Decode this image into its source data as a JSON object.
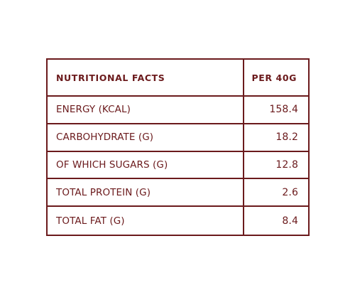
{
  "table": {
    "header": {
      "label": "NUTRITIONAL FACTS",
      "value": "PER 40G"
    },
    "rows": [
      {
        "label": "ENERGY (KCAL)",
        "value": "158.4"
      },
      {
        "label": "CARBOHYDRATE (G)",
        "value": "18.2"
      },
      {
        "label": "OF WHICH SUGARS (G)",
        "value": "12.8"
      },
      {
        "label": "TOTAL PROTEIN (G)",
        "value": "2.6"
      },
      {
        "label": "TOTAL FAT (G)",
        "value": "8.4"
      }
    ]
  },
  "colors": {
    "text": "#6b1a1c",
    "border": "#6b1a1c",
    "background": "#ffffff"
  }
}
